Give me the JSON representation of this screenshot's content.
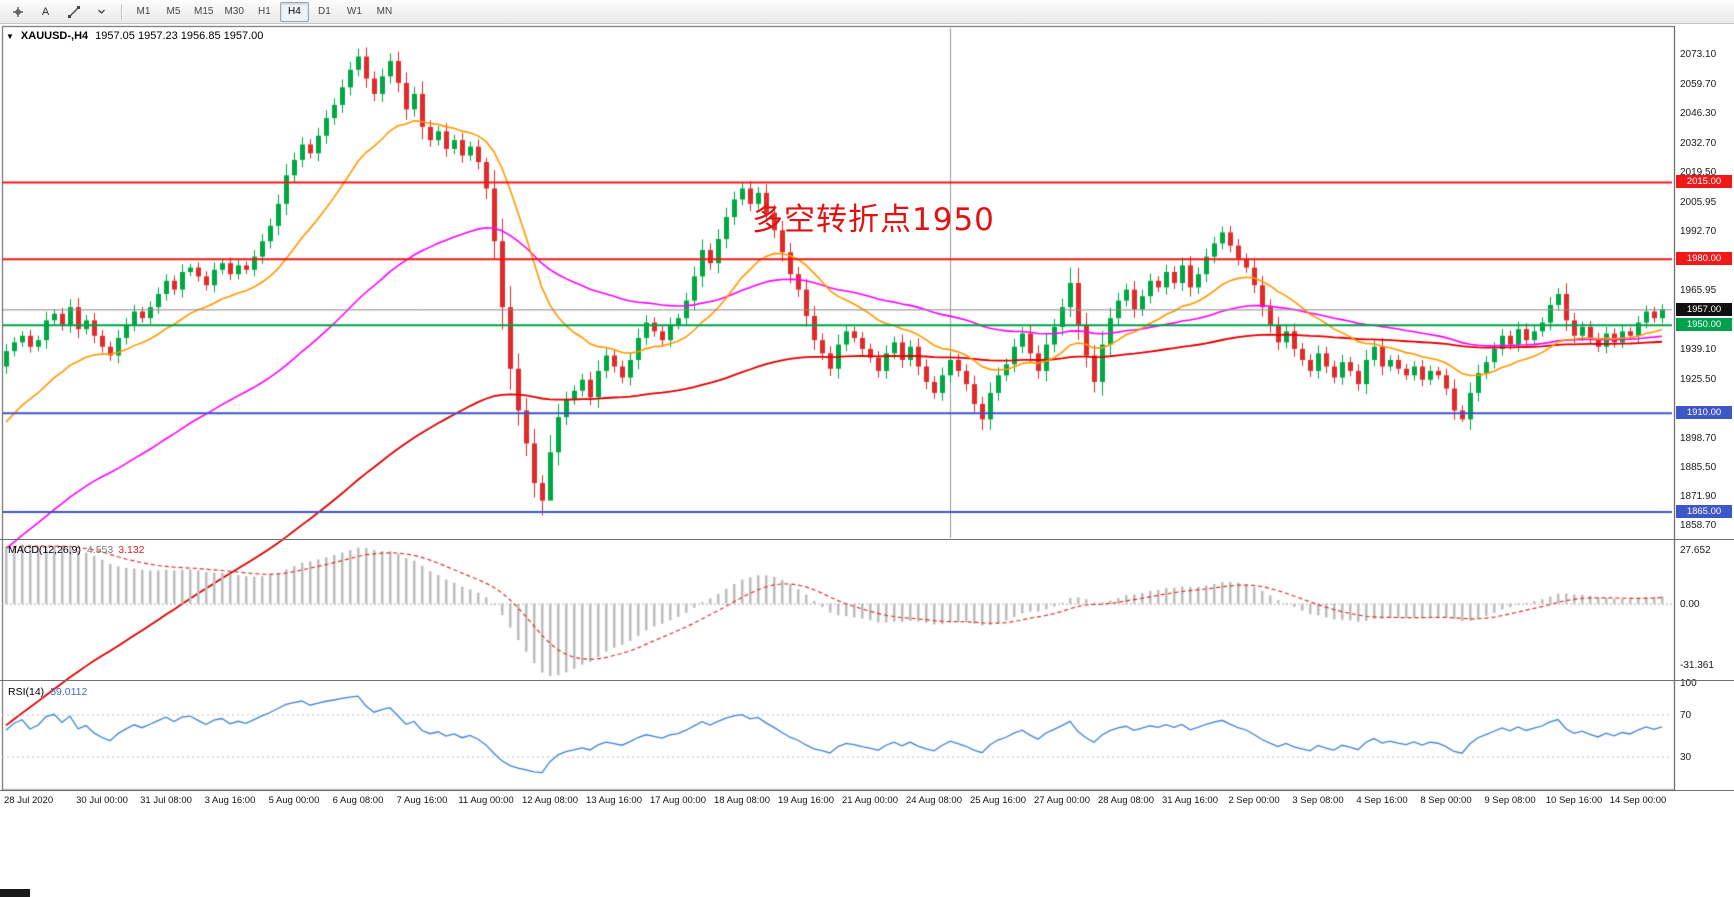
{
  "toolbar": {
    "tools": [
      {
        "id": "crosshair-tool"
      },
      {
        "id": "text-tool",
        "label": "A"
      },
      {
        "id": "trendline-tool"
      },
      {
        "id": "shapes-dropdown"
      }
    ],
    "timeframes": [
      "M1",
      "M5",
      "M15",
      "M30",
      "H1",
      "H4",
      "D1",
      "W1",
      "MN"
    ],
    "active_timeframe": "H4"
  },
  "chart": {
    "title_symbol": "XAUUSD-,H4",
    "title_ohlc": "1957.05 1957.23 1956.85 1957.00",
    "current_price": "1957.00",
    "annotation": {
      "text": "多空转折点1950",
      "color": "#e01212"
    },
    "levels": [
      {
        "value": 2015.0,
        "label": "2015.00",
        "color": "#f01818",
        "type": "resistance"
      },
      {
        "value": 1980.0,
        "label": "1980.00",
        "color": "#f01818",
        "type": "resistance"
      },
      {
        "value": 1950.0,
        "label": "1950.00",
        "color": "#00a14b",
        "type": "pivot"
      },
      {
        "value": 1910.0,
        "label": "1910.00",
        "color": "#3d56c8",
        "type": "support"
      },
      {
        "value": 1865.0,
        "label": "1865.00",
        "color": "#3d56c8",
        "type": "support"
      }
    ],
    "y_axis_labels": [
      "2073.10",
      "2059.70",
      "2046.30",
      "2032.70",
      "2019.50",
      "2005.95",
      "1992.70",
      "1979.30",
      "1965.95",
      "1939.10",
      "1925.50",
      "1898.70",
      "1885.50",
      "1871.90",
      "1858.70"
    ]
  },
  "chart_data": {
    "type": "candlestick",
    "symbol": "XAUUSD-",
    "timeframe": "H4",
    "y_range": [
      1853,
      2085
    ],
    "first_open": 1931,
    "closes": [
      1938,
      1942,
      1945,
      1940,
      1943,
      1952,
      1955,
      1950,
      1958,
      1948,
      1952,
      1945,
      1940,
      1936,
      1944,
      1950,
      1956,
      1953,
      1958,
      1964,
      1970,
      1966,
      1974,
      1976,
      1972,
      1968,
      1975,
      1978,
      1973,
      1977,
      1975,
      1981,
      1988,
      1995,
      2005,
      2018,
      2025,
      2032,
      2028,
      2036,
      2044,
      2050,
      2058,
      2066,
      2072,
      2062,
      2055,
      2063,
      2070,
      2060,
      2048,
      2055,
      2040,
      2034,
      2038,
      2030,
      2034,
      2027,
      2031,
      2024,
      2012,
      1988,
      1958,
      1930,
      1911,
      1896,
      1878,
      1870,
      1892,
      1908,
      1916,
      1920,
      1925,
      1917,
      1929,
      1936,
      1931,
      1926,
      1934,
      1944,
      1951,
      1947,
      1943,
      1950,
      1953,
      1961,
      1972,
      1984,
      1978,
      1989,
      1999,
      2007,
      2012,
      2005,
      2010,
      2001,
      1993,
      1983,
      1973,
      1966,
      1954,
      1943,
      1937,
      1930,
      1941,
      1947,
      1944,
      1939,
      1935,
      1929,
      1937,
      1942,
      1934,
      1940,
      1931,
      1924,
      1919,
      1927,
      1934,
      1929,
      1923,
      1914,
      1907,
      1919,
      1927,
      1932,
      1940,
      1946,
      1937,
      1929,
      1941,
      1949,
      1958,
      1969,
      1950,
      1936,
      1924,
      1941,
      1953,
      1961,
      1966,
      1957,
      1963,
      1970,
      1967,
      1974,
      1969,
      1977,
      1967,
      1973,
      1981,
      1987,
      1992,
      1986,
      1980,
      1976,
      1968,
      1958,
      1950,
      1942,
      1947,
      1939,
      1934,
      1929,
      1937,
      1931,
      1926,
      1933,
      1929,
      1923,
      1934,
      1940,
      1931,
      1934,
      1930,
      1927,
      1931,
      1925,
      1929,
      1927,
      1921,
      1911,
      1907,
      1919,
      1928,
      1933,
      1939,
      1945,
      1941,
      1948,
      1943,
      1947,
      1951,
      1959,
      1964,
      1952,
      1945,
      1949,
      1944,
      1940,
      1946,
      1942,
      1947,
      1945,
      1951,
      1956,
      1953,
      1957
    ],
    "wick_overrides": {
      "44": {
        "high": 2075.5
      },
      "48": {
        "high": 2073.5
      },
      "60": {
        "high": 2026
      },
      "67": {
        "low": 1863.2
      },
      "68": {
        "low": 1882
      },
      "122": {
        "low": 1902
      },
      "133": {
        "high": 1976
      },
      "182": {
        "low": 1905.8
      }
    },
    "x_labels": [
      {
        "t": "28 Jul 2020",
        "i": 0
      },
      {
        "t": "30 Jul 00:00",
        "i": 12
      },
      {
        "t": "31 Jul 08:00",
        "i": 20
      },
      {
        "t": "3 Aug 16:00",
        "i": 28
      },
      {
        "t": "5 Aug 00:00",
        "i": 36
      },
      {
        "t": "6 Aug 08:00",
        "i": 44
      },
      {
        "t": "7 Aug 16:00",
        "i": 52
      },
      {
        "t": "11 Aug 00:00",
        "i": 60
      },
      {
        "t": "12 Aug 08:00",
        "i": 68
      },
      {
        "t": "13 Aug 16:00",
        "i": 76
      },
      {
        "t": "17 Aug 00:00",
        "i": 84
      },
      {
        "t": "18 Aug 08:00",
        "i": 92
      },
      {
        "t": "19 Aug 16:00",
        "i": 100
      },
      {
        "t": "21 Aug 00:00",
        "i": 108
      },
      {
        "t": "24 Aug 08:00",
        "i": 116
      },
      {
        "t": "25 Aug 16:00",
        "i": 124
      },
      {
        "t": "27 Aug 00:00",
        "i": 132
      },
      {
        "t": "28 Aug 08:00",
        "i": 140
      },
      {
        "t": "31 Aug 16:00",
        "i": 148
      },
      {
        "t": "2 Sep 00:00",
        "i": 156
      },
      {
        "t": "3 Sep 08:00",
        "i": 164
      },
      {
        "t": "4 Sep 16:00",
        "i": 172
      },
      {
        "t": "8 Sep 00:00",
        "i": 180
      },
      {
        "t": "9 Sep 08:00",
        "i": 188
      },
      {
        "t": "10 Sep 16:00",
        "i": 196
      },
      {
        "t": "14 Sep 00:00",
        "i": 204
      }
    ],
    "vertical_line_index": 118,
    "moving_averages": [
      {
        "name": "ma-fast-orange",
        "period": 18,
        "seed": 1902,
        "color": "#ff9900",
        "width": 1.6
      },
      {
        "name": "ma-mid-magenta",
        "period": 60,
        "seed": 1845,
        "color": "#ff00ff",
        "width": 1.6
      },
      {
        "name": "ma-slow-red",
        "period": 124,
        "seed": 1765,
        "color": "#dd0000",
        "width": 1.8
      }
    ],
    "macd": {
      "label": "MACD(12,26,9)",
      "value_main": "4.553",
      "value_signal": "3.132",
      "fast": 12,
      "slow": 26,
      "signal": 9,
      "ema_seeds": {
        "fast": 1900,
        "slow": 1872
      },
      "scale_labels": [
        "27.652",
        "0.00",
        "-31.361"
      ],
      "range": [
        -38,
        32
      ]
    },
    "rsi": {
      "label": "RSI(14)",
      "value": "59.0112",
      "period": 14,
      "levels": [
        100,
        70,
        30
      ],
      "range": [
        0,
        100
      ]
    }
  }
}
